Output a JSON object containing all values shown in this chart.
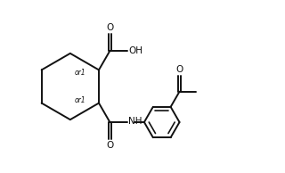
{
  "bg_color": "#ffffff",
  "line_color": "#111111",
  "line_width": 1.4,
  "font_size": 7.5,
  "or1_fontsize": 5.5,
  "fig_width": 3.2,
  "fig_height": 1.94,
  "dpi": 100,
  "xlim": [
    -0.5,
    10.0
  ],
  "ylim": [
    1.5,
    8.5
  ]
}
